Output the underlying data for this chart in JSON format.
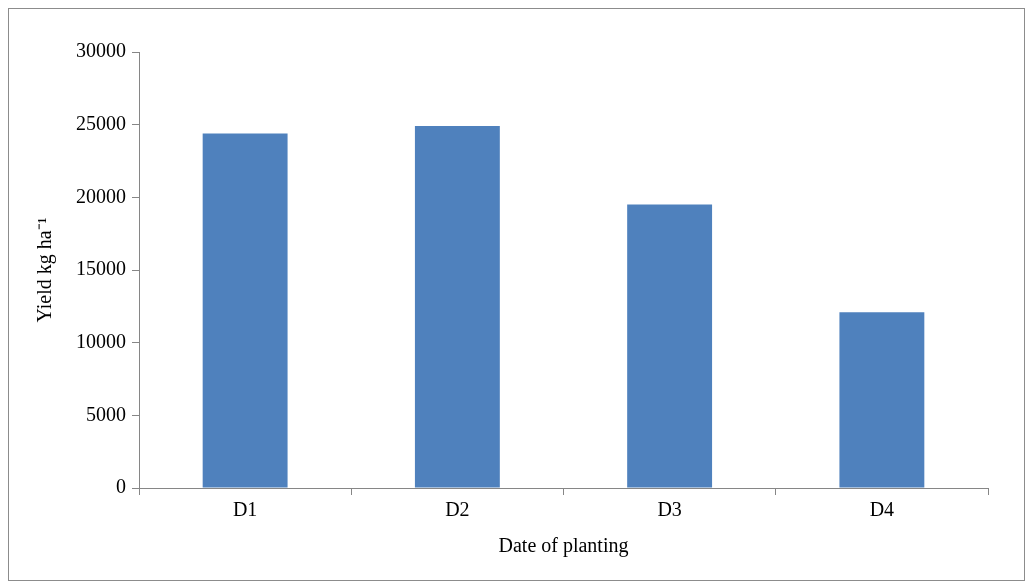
{
  "chart_data": {
    "type": "bar",
    "xlabel": "Date of planting",
    "ylabel": "Yield kg ha⁻¹",
    "categories": [
      "D1",
      "D2",
      "D3",
      "D4"
    ],
    "values": [
      24400,
      24900,
      19500,
      12100
    ],
    "color": "#4f81bd",
    "ylim": [
      0,
      30000
    ],
    "yticks": [
      0,
      5000,
      10000,
      15000,
      20000,
      25000,
      30000
    ],
    "grid": false,
    "legend": false
  }
}
